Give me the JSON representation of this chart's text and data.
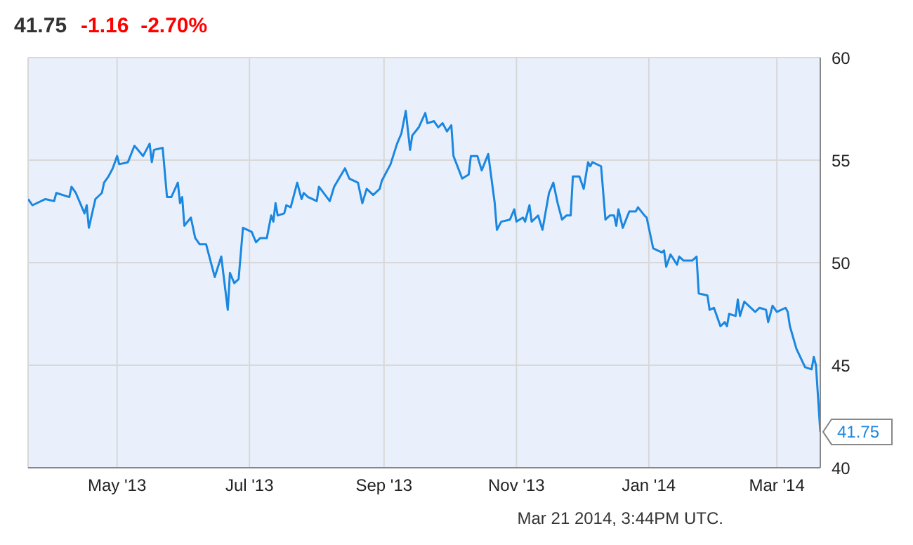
{
  "chart_data": {
    "type": "line",
    "title": "41.75",
    "subtitle": "-1.16  -2.70%",
    "annotations": [
      "Mar 21 2014, 3:44PM UTC."
    ],
    "xlim": [
      "2013-03-21",
      "2014-03-21"
    ],
    "xticks": [
      {
        "value": "2013-05-01",
        "label": "May '13"
      },
      {
        "value": "2013-07-01",
        "label": "Jul '13"
      },
      {
        "value": "2013-09-01",
        "label": "Sep '13"
      },
      {
        "value": "2013-11-01",
        "label": "Nov '13"
      },
      {
        "value": "2014-01-01",
        "label": "Jan '14"
      },
      {
        "value": "2014-03-01",
        "label": "Mar '14"
      }
    ],
    "ylim": [
      40,
      60
    ],
    "yticks": [
      40,
      45,
      50,
      55,
      60
    ],
    "grid": true,
    "marker": "none",
    "line_style": "solid",
    "x": [
      "2013-03-21",
      "2013-03-23",
      "2013-03-29",
      "2013-04-02",
      "2013-04-03",
      "2013-04-09",
      "2013-04-10",
      "2013-04-12",
      "2013-04-16",
      "2013-04-17",
      "2013-04-18",
      "2013-04-21",
      "2013-04-24",
      "2013-04-25",
      "2013-04-27",
      "2013-04-29",
      "2013-05-01",
      "2013-05-02",
      "2013-05-06",
      "2013-05-09",
      "2013-05-13",
      "2013-05-16",
      "2013-05-17",
      "2013-05-18",
      "2013-05-22",
      "2013-05-24",
      "2013-05-26",
      "2013-05-29",
      "2013-05-30",
      "2013-05-31",
      "2013-06-01",
      "2013-06-04",
      "2013-06-06",
      "2013-06-08",
      "2013-06-11",
      "2013-06-13",
      "2013-06-15",
      "2013-06-18",
      "2013-06-21",
      "2013-06-22",
      "2013-06-24",
      "2013-06-26",
      "2013-06-28",
      "2013-07-02",
      "2013-07-04",
      "2013-07-06",
      "2013-07-09",
      "2013-07-11",
      "2013-07-12",
      "2013-07-13",
      "2013-07-14",
      "2013-07-17",
      "2013-07-18",
      "2013-07-20",
      "2013-07-23",
      "2013-07-25",
      "2013-07-26",
      "2013-07-28",
      "2013-07-30",
      "2013-08-01",
      "2013-08-02",
      "2013-08-07",
      "2013-08-09",
      "2013-08-14",
      "2013-08-16",
      "2013-08-20",
      "2013-08-22",
      "2013-08-24",
      "2013-08-27",
      "2013-08-30",
      "2013-08-31",
      "2013-09-04",
      "2013-09-07",
      "2013-09-09",
      "2013-09-11",
      "2013-09-13",
      "2013-09-14",
      "2013-09-17",
      "2013-09-20",
      "2013-09-21",
      "2013-09-24",
      "2013-09-26",
      "2013-09-28",
      "2013-09-30",
      "2013-10-02",
      "2013-10-03",
      "2013-10-07",
      "2013-10-10",
      "2013-10-11",
      "2013-10-14",
      "2013-10-16",
      "2013-10-19",
      "2013-10-22",
      "2013-10-23",
      "2013-10-25",
      "2013-10-29",
      "2013-10-31",
      "2013-11-01",
      "2013-11-04",
      "2013-11-05",
      "2013-11-07",
      "2013-11-08",
      "2013-11-11",
      "2013-11-13",
      "2013-11-16",
      "2013-11-18",
      "2013-11-20",
      "2013-11-22",
      "2013-11-24",
      "2013-11-26",
      "2013-11-27",
      "2013-11-30",
      "2013-12-02",
      "2013-12-04",
      "2013-12-05",
      "2013-12-06",
      "2013-12-10",
      "2013-12-12",
      "2013-12-14",
      "2013-12-16",
      "2013-12-17",
      "2013-12-18",
      "2013-12-20",
      "2013-12-23",
      "2013-12-26",
      "2013-12-27",
      "2013-12-30",
      "2013-12-31",
      "2014-01-03",
      "2014-01-07",
      "2014-01-08",
      "2014-01-09",
      "2014-01-11",
      "2014-01-14",
      "2014-01-15",
      "2014-01-17",
      "2014-01-21",
      "2014-01-23",
      "2014-01-24",
      "2014-01-28",
      "2014-01-29",
      "2014-01-31",
      "2014-02-03",
      "2014-02-05",
      "2014-02-06",
      "2014-02-07",
      "2014-02-10",
      "2014-02-11",
      "2014-02-12",
      "2014-02-14",
      "2014-02-19",
      "2014-02-21",
      "2014-02-24",
      "2014-02-25",
      "2014-02-27",
      "2014-03-01",
      "2014-03-05",
      "2014-03-06",
      "2014-03-07",
      "2014-03-10",
      "2014-03-14",
      "2014-03-17",
      "2014-03-18",
      "2014-03-19",
      "2014-03-21"
    ],
    "series": [
      {
        "color": "#1a87e0",
        "values": [
          53.1,
          52.8,
          53.1,
          53.0,
          53.4,
          53.2,
          53.7,
          53.4,
          52.4,
          52.8,
          51.7,
          53.1,
          53.4,
          53.9,
          54.2,
          54.6,
          55.2,
          54.8,
          54.9,
          55.7,
          55.2,
          55.8,
          54.9,
          55.5,
          55.6,
          53.2,
          53.2,
          53.9,
          52.9,
          53.2,
          51.8,
          52.2,
          51.2,
          50.9,
          50.9,
          50.1,
          49.3,
          50.3,
          47.7,
          49.5,
          49.0,
          49.2,
          51.7,
          51.5,
          51.0,
          51.2,
          51.2,
          52.3,
          52.0,
          52.9,
          52.3,
          52.4,
          52.8,
          52.7,
          53.9,
          53.1,
          53.4,
          53.2,
          53.1,
          53.0,
          53.7,
          53.0,
          53.7,
          54.6,
          54.1,
          53.9,
          52.9,
          53.6,
          53.3,
          53.6,
          54.0,
          54.8,
          55.8,
          56.3,
          57.4,
          55.5,
          56.2,
          56.6,
          57.3,
          56.8,
          56.9,
          56.6,
          56.8,
          56.4,
          56.7,
          55.2,
          54.1,
          54.3,
          55.2,
          55.2,
          54.5,
          55.3,
          52.9,
          51.6,
          52.0,
          52.1,
          52.6,
          52.0,
          52.2,
          52.0,
          52.8,
          52.0,
          52.3,
          51.6,
          53.4,
          53.9,
          52.9,
          52.1,
          52.3,
          52.3,
          54.2,
          54.2,
          53.6,
          54.9,
          54.7,
          54.9,
          54.7,
          52.1,
          52.3,
          52.3,
          51.8,
          52.6,
          51.7,
          52.5,
          52.5,
          52.7,
          52.3,
          52.2,
          50.7,
          50.5,
          50.6,
          49.8,
          50.4,
          49.9,
          50.3,
          50.1,
          50.1,
          50.3,
          48.5,
          48.4,
          47.7,
          47.8,
          46.9,
          47.1,
          46.9,
          47.5,
          47.4,
          48.2,
          47.4,
          48.1,
          47.6,
          47.8,
          47.7,
          47.1,
          47.9,
          47.6,
          47.8,
          47.6,
          46.9,
          45.8,
          44.9,
          44.8,
          45.4,
          45.0,
          41.75
        ],
        "value_labels": [
          null,
          null,
          null,
          null,
          null,
          null,
          null,
          null,
          null,
          null,
          null,
          null,
          null,
          null,
          null,
          null,
          null,
          null,
          null,
          null,
          null,
          null,
          null,
          null,
          null,
          null,
          null,
          null,
          null,
          null,
          null,
          null,
          null,
          null,
          null,
          null,
          null,
          null,
          null,
          null,
          null,
          null,
          null,
          null,
          null,
          null,
          null,
          null,
          null,
          null,
          null,
          null,
          null,
          null,
          null,
          null,
          null,
          null,
          null,
          null,
          null,
          null,
          null,
          null,
          null,
          null,
          null,
          null,
          null,
          null,
          null,
          null,
          null,
          null,
          null,
          null,
          null,
          null,
          null,
          null,
          null,
          null,
          null,
          null,
          null,
          null,
          null,
          null,
          null,
          null,
          null,
          null,
          null,
          null,
          null,
          null,
          null,
          null,
          null,
          null,
          null,
          null,
          null,
          null,
          null,
          null,
          null,
          null,
          null,
          null,
          null,
          null,
          null,
          null,
          null,
          null,
          null,
          null,
          null,
          null,
          null,
          null,
          null,
          null,
          null,
          null,
          null,
          null,
          null,
          null,
          null,
          null,
          null,
          null,
          null,
          null,
          null,
          null,
          null,
          null,
          null,
          null,
          null,
          null,
          null,
          null,
          null,
          null,
          null,
          null,
          null,
          null,
          null,
          null,
          null,
          null,
          null,
          null,
          null,
          null,
          null,
          null,
          null,
          null,
          "41.75"
        ]
      }
    ]
  }
}
